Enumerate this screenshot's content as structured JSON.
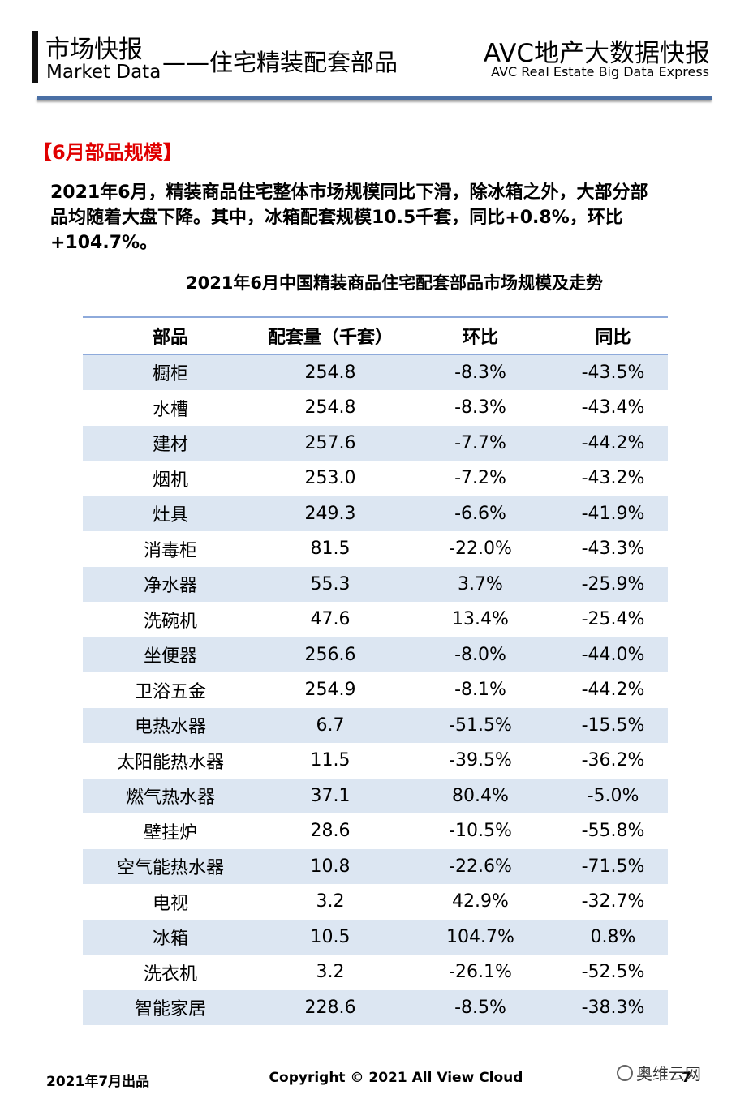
{
  "header": {
    "title_cn": "市场快报",
    "title_en": "Market Data",
    "subtitle": "——住宅精装配套部品",
    "brand_cn": "AVC地产大数据快报",
    "brand_en": "AVC  Real Estate Big Data Express"
  },
  "section_title": "【6月部品规模】",
  "paragraph": [
    "2021年6月，精装商品住宅整体市场规模同比下滑，除冰箱之外，大部分部",
    "品均随着大盘下降。其中，冰箱配套规模10.5千套，同比+0.8%，环比",
    "+104.7%。"
  ],
  "table": {
    "title": "2021年6月中国精装商品住宅配套部品市场规模及走势",
    "columns": [
      "部品",
      "配套量（千套）",
      "环比",
      "同比"
    ],
    "rows": [
      [
        "橱柜",
        "254.8",
        "-8.3%",
        "-43.5%"
      ],
      [
        "水槽",
        "254.8",
        "-8.3%",
        "-43.4%"
      ],
      [
        "建材",
        "257.6",
        "-7.7%",
        "-44.2%"
      ],
      [
        "烟机",
        "253.0",
        "-7.2%",
        "-43.2%"
      ],
      [
        "灶具",
        "249.3",
        "-6.6%",
        "-41.9%"
      ],
      [
        "消毒柜",
        "81.5",
        "-22.0%",
        "-43.3%"
      ],
      [
        "净水器",
        "55.3",
        "3.7%",
        "-25.9%"
      ],
      [
        "洗碗机",
        "47.6",
        "13.4%",
        "-25.4%"
      ],
      [
        "坐便器",
        "256.6",
        "-8.0%",
        "-44.0%"
      ],
      [
        "卫浴五金",
        "254.9",
        "-8.1%",
        "-44.2%"
      ],
      [
        "电热水器",
        "6.7",
        "-51.5%",
        "-15.5%"
      ],
      [
        "太阳能热水器",
        "11.5",
        "-39.5%",
        "-36.2%"
      ],
      [
        "燃气热水器",
        "37.1",
        "80.4%",
        "-5.0%"
      ],
      [
        "壁挂炉",
        "28.6",
        "-10.5%",
        "-55.8%"
      ],
      [
        "空气能热水器",
        "10.8",
        "-22.6%",
        "-71.5%"
      ],
      [
        "电视",
        "3.2",
        "42.9%",
        "-32.7%"
      ],
      [
        "冰箱",
        "10.5",
        "104.7%",
        "0.8%"
      ],
      [
        "洗衣机",
        "3.2",
        "-26.1%",
        "-52.5%"
      ],
      [
        "智能家居",
        "228.6",
        "-8.5%",
        "-38.3%"
      ]
    ]
  },
  "footer": {
    "date": "2021年7月出品",
    "copyright": "Copyright © 2021  All View Cloud",
    "page": "7",
    "wechat": "奥维云网"
  }
}
